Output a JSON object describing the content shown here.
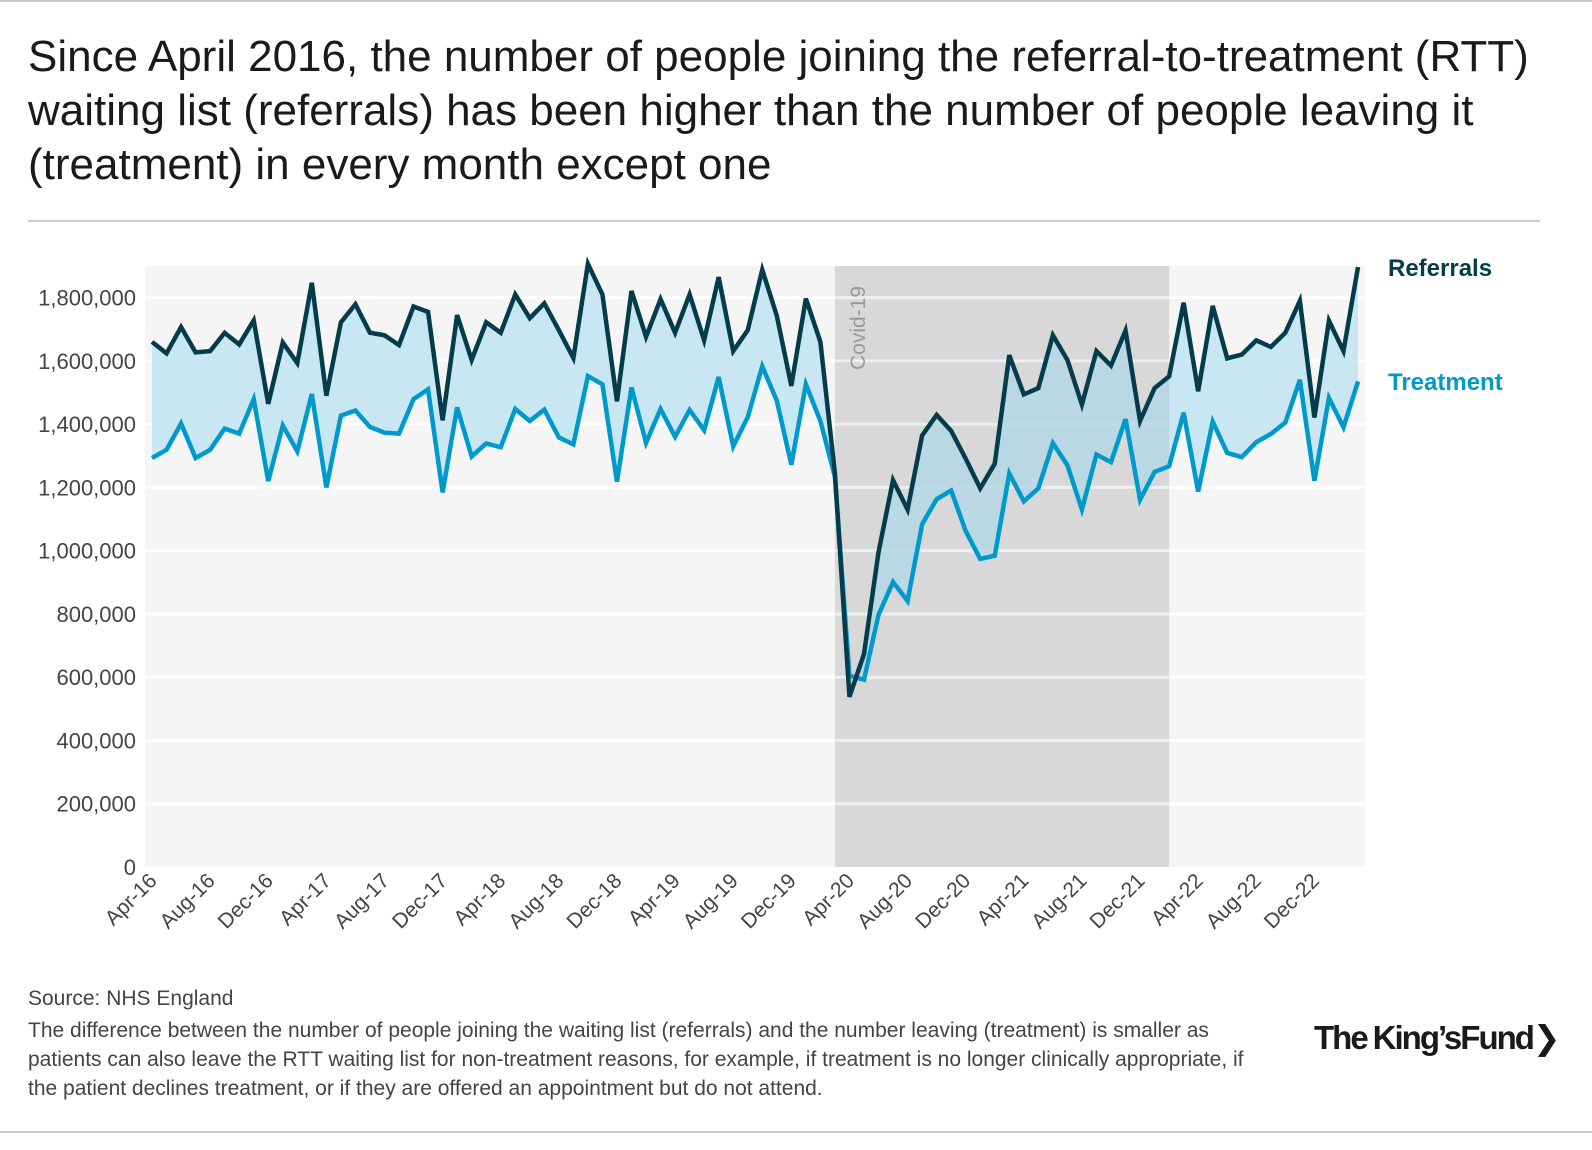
{
  "title": "Since April 2016, the number of people joining the referral-to-treatment (RTT) waiting list (referrals) has been higher than the number of people leaving it (treatment) in every month except one",
  "footer": {
    "source": "Source: NHS England",
    "note": "The difference between the number of people joining the waiting list (referrals) and the number leaving (treatment) is smaller as patients can also leave the RTT waiting list for non-treatment reasons, for example, if treatment is no longer clinically appropriate, if the patient declines treatment, or if they are offered an appointment but do not attend.",
    "logo": "The King's Fund"
  },
  "chart_data": {
    "type": "line",
    "title": "",
    "xlabel": "",
    "ylabel": "",
    "ylim": [
      0,
      1900000
    ],
    "yticks": [
      0,
      200000,
      400000,
      600000,
      800000,
      1000000,
      1200000,
      1400000,
      1600000,
      1800000
    ],
    "ytick_labels": [
      "0",
      "200,000",
      "400,000",
      "600,000",
      "800,000",
      "1,000,000",
      "1,200,000",
      "1,400,000",
      "1,600,000",
      "1,800,000"
    ],
    "grid": true,
    "legend": "right, labels at line ends",
    "categories": [
      "Apr-16",
      "May-16",
      "Jun-16",
      "Jul-16",
      "Aug-16",
      "Sep-16",
      "Oct-16",
      "Nov-16",
      "Dec-16",
      "Jan-17",
      "Feb-17",
      "Mar-17",
      "Apr-17",
      "May-17",
      "Jun-17",
      "Jul-17",
      "Aug-17",
      "Sep-17",
      "Oct-17",
      "Nov-17",
      "Dec-17",
      "Jan-18",
      "Feb-18",
      "Mar-18",
      "Apr-18",
      "May-18",
      "Jun-18",
      "Jul-18",
      "Aug-18",
      "Sep-18",
      "Oct-18",
      "Nov-18",
      "Dec-18",
      "Jan-19",
      "Feb-19",
      "Mar-19",
      "Apr-19",
      "May-19",
      "Jun-19",
      "Jul-19",
      "Aug-19",
      "Sep-19",
      "Oct-19",
      "Nov-19",
      "Dec-19",
      "Jan-20",
      "Feb-20",
      "Mar-20",
      "Apr-20",
      "May-20",
      "Jun-20",
      "Jul-20",
      "Aug-20",
      "Sep-20",
      "Oct-20",
      "Nov-20",
      "Dec-20",
      "Jan-21",
      "Feb-21",
      "Mar-21",
      "Apr-21",
      "May-21",
      "Jun-21",
      "Jul-21",
      "Aug-21",
      "Sep-21",
      "Oct-21",
      "Nov-21",
      "Dec-21",
      "Jan-22",
      "Feb-22",
      "Mar-22",
      "Apr-22",
      "May-22",
      "Jun-22",
      "Jul-22",
      "Aug-22",
      "Sep-22",
      "Oct-22",
      "Nov-22",
      "Dec-22",
      "Jan-23",
      "Feb-23",
      "Mar-23"
    ],
    "xtick_labels": [
      "Apr-16",
      "Aug-16",
      "Dec-16",
      "Apr-17",
      "Aug-17",
      "Dec-17",
      "Apr-18",
      "Aug-18",
      "Dec-18",
      "Apr-19",
      "Aug-19",
      "Dec-19",
      "Apr-20",
      "Aug-20",
      "Dec-20",
      "Apr-21",
      "Aug-21",
      "Dec-21",
      "Apr-22",
      "Aug-22",
      "Dec-22"
    ],
    "series": [
      {
        "name": "Referrals",
        "color": "#053c4c",
        "values": [
          1660000,
          1624000,
          1707000,
          1627000,
          1631000,
          1689000,
          1652000,
          1728000,
          1464000,
          1658000,
          1593000,
          1847000,
          1490000,
          1722000,
          1779000,
          1689000,
          1681000,
          1650000,
          1772000,
          1755000,
          1412000,
          1745000,
          1603000,
          1722000,
          1689000,
          1810000,
          1735000,
          1782000,
          1697000,
          1609000,
          1907000,
          1810000,
          1472000,
          1821000,
          1676000,
          1795000,
          1689000,
          1810000,
          1665000,
          1865000,
          1631000,
          1697000,
          1888000,
          1743000,
          1521000,
          1797000,
          1660000,
          1244000,
          538000,
          673000,
          995000,
          1223000,
          1130000,
          1364000,
          1429000,
          1379000,
          1291000,
          1197000,
          1275000,
          1618000,
          1494000,
          1514000,
          1681000,
          1603000,
          1462000,
          1631000,
          1585000,
          1696000,
          1410000,
          1514000,
          1551000,
          1784000,
          1504000,
          1774000,
          1608000,
          1620000,
          1665000,
          1644000,
          1689000,
          1790000,
          1421000,
          1727000,
          1631000,
          1897000
        ]
      },
      {
        "name": "Treatment",
        "color": "#0099cc",
        "values": [
          1293000,
          1319000,
          1402000,
          1293000,
          1319000,
          1386000,
          1370000,
          1479000,
          1220000,
          1396000,
          1314000,
          1495000,
          1200000,
          1427000,
          1443000,
          1391000,
          1373000,
          1370000,
          1479000,
          1510000,
          1184000,
          1453000,
          1298000,
          1339000,
          1327000,
          1448000,
          1410000,
          1446000,
          1358000,
          1336000,
          1552000,
          1526000,
          1218000,
          1516000,
          1341000,
          1448000,
          1360000,
          1445000,
          1381000,
          1549000,
          1330000,
          1422000,
          1583000,
          1474000,
          1272000,
          1526000,
          1410000,
          1234000,
          605000,
          592000,
          797000,
          901000,
          841000,
          1083000,
          1163000,
          1190000,
          1062000,
          974000,
          984000,
          1244000,
          1156000,
          1197000,
          1340000,
          1270000,
          1130000,
          1304000,
          1280000,
          1416000,
          1161000,
          1249000,
          1267000,
          1436000,
          1187000,
          1408000,
          1309000,
          1296000,
          1343000,
          1369000,
          1405000,
          1540000,
          1221000,
          1483000,
          1390000,
          1535000
        ]
      }
    ],
    "annotations": [
      {
        "text": "Covid-19",
        "from": "Mar-20",
        "to": "Feb-22",
        "shade_color": "#e4e4e4"
      }
    ],
    "fill_between_color": "#bfe4f2",
    "plot_background": "#f5f5f5"
  }
}
